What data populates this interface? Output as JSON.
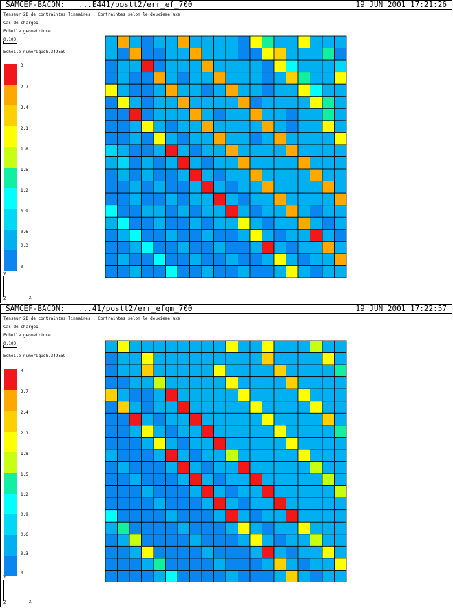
{
  "colors": [
    "#1250f0",
    "#0a86f0",
    "#00b0f0",
    "#00d8f8",
    "#00ffff",
    "#10f0a0",
    "#c8ff10",
    "#ffff00",
    "#ffd000",
    "#ffa800",
    "#f01818"
  ],
  "panels": [
    {
      "header_left": "SAMCEF-BACON:   ...E441/postt2/err_ef_700",
      "header_right": "19 JUN 2001 17:21:26",
      "title": "Tenseur 2D de contraintes lineaires : Contraintes selon le deuxieme axe",
      "load_case": "Cas de charge1",
      "geom_scale_label": "Echelle geometrique",
      "geom_scale_value": "0.100",
      "num_scale": "Echelle numerique8.349559",
      "legend_ticks": [
        "3",
        "2.7",
        "2.4",
        "2.1",
        "1.8",
        "1.5",
        "1.2",
        "0.9",
        "0.6",
        "0.3",
        "0"
      ],
      "axis_y": "Y",
      "axis_x": "X",
      "axis_z": "Z"
    },
    {
      "header_left": "SAMCEF-BACON:   ...41/postt2/err_efgm_700",
      "header_right": "19 JUN 2001 17:22:57",
      "title": "Tenseur 2D de contraintes lineaires : Contraintes selon le deuxieme axe",
      "load_case": "Cas de charge1",
      "geom_scale_label": "Echelle geometrique",
      "geom_scale_value": "0.100",
      "num_scale": "Echelle numerique8.349559",
      "legend_ticks": [
        "3",
        "2.7",
        "2.4",
        "2.1",
        "1.8",
        "1.5",
        "1.2",
        "0.9",
        "0.6",
        "0.3",
        "0"
      ],
      "axis_y": "Y",
      "axis_x": "X",
      "axis_z": "Z"
    }
  ],
  "chart_data": [
    {
      "type": "heatmap",
      "rows": 20,
      "cols": 20,
      "color_scale": [
        0,
        0.3,
        0.6,
        0.9,
        1.2,
        1.5,
        1.8,
        2.1,
        2.4,
        2.7,
        3
      ],
      "values": [
        [
          2,
          9,
          2,
          1,
          2,
          2,
          9,
          2,
          2,
          2,
          2,
          1,
          7,
          5,
          2,
          2,
          7,
          2,
          2,
          2
        ],
        [
          2,
          1,
          9,
          1,
          1,
          2,
          2,
          9,
          2,
          2,
          2,
          1,
          1,
          7,
          8,
          2,
          2,
          2,
          5,
          1
        ],
        [
          1,
          2,
          2,
          10,
          1,
          2,
          2,
          2,
          9,
          2,
          2,
          2,
          2,
          1,
          7,
          4,
          2,
          2,
          2,
          3
        ],
        [
          1,
          2,
          1,
          1,
          9,
          2,
          1,
          2,
          2,
          9,
          2,
          2,
          2,
          1,
          2,
          8,
          5,
          2,
          2,
          7
        ],
        [
          7,
          2,
          1,
          1,
          2,
          9,
          2,
          2,
          1,
          2,
          9,
          2,
          2,
          1,
          2,
          2,
          7,
          4,
          2,
          2
        ],
        [
          1,
          7,
          2,
          1,
          2,
          2,
          9,
          2,
          2,
          2,
          2,
          9,
          1,
          2,
          2,
          2,
          2,
          7,
          5,
          2
        ],
        [
          1,
          1,
          10,
          1,
          2,
          2,
          2,
          9,
          2,
          1,
          2,
          2,
          9,
          2,
          2,
          1,
          2,
          2,
          5,
          2
        ],
        [
          1,
          1,
          2,
          7,
          2,
          1,
          2,
          2,
          9,
          2,
          2,
          2,
          2,
          9,
          2,
          1,
          2,
          2,
          7,
          2
        ],
        [
          1,
          1,
          2,
          1,
          7,
          2,
          1,
          2,
          2,
          9,
          2,
          2,
          1,
          2,
          9,
          2,
          2,
          2,
          2,
          7
        ],
        [
          3,
          2,
          1,
          1,
          2,
          10,
          2,
          1,
          2,
          2,
          9,
          2,
          2,
          2,
          2,
          9,
          2,
          2,
          2,
          2
        ],
        [
          2,
          3,
          1,
          2,
          1,
          2,
          10,
          2,
          1,
          2,
          2,
          9,
          2,
          2,
          2,
          2,
          9,
          2,
          2,
          2
        ],
        [
          1,
          2,
          1,
          2,
          1,
          1,
          2,
          10,
          2,
          1,
          2,
          2,
          9,
          2,
          2,
          2,
          2,
          9,
          2,
          2
        ],
        [
          1,
          1,
          2,
          1,
          2,
          1,
          1,
          2,
          10,
          2,
          1,
          2,
          2,
          9,
          2,
          2,
          2,
          2,
          9,
          2
        ],
        [
          1,
          1,
          2,
          1,
          1,
          2,
          1,
          2,
          2,
          10,
          2,
          1,
          2,
          2,
          9,
          2,
          2,
          2,
          2,
          9
        ],
        [
          4,
          1,
          1,
          2,
          2,
          1,
          2,
          1,
          2,
          2,
          10,
          2,
          1,
          2,
          2,
          9,
          2,
          1,
          2,
          2
        ],
        [
          2,
          4,
          1,
          1,
          2,
          1,
          1,
          2,
          1,
          2,
          2,
          7,
          2,
          1,
          2,
          2,
          9,
          2,
          1,
          2
        ],
        [
          1,
          2,
          4,
          1,
          1,
          2,
          1,
          1,
          2,
          1,
          1,
          2,
          7,
          2,
          1,
          2,
          2,
          10,
          2,
          1
        ],
        [
          1,
          1,
          2,
          4,
          1,
          1,
          2,
          1,
          1,
          2,
          1,
          1,
          2,
          10,
          2,
          1,
          2,
          2,
          9,
          2
        ],
        [
          1,
          2,
          1,
          1,
          4,
          1,
          1,
          2,
          1,
          1,
          2,
          1,
          1,
          2,
          7,
          2,
          1,
          2,
          2,
          9
        ],
        [
          1,
          1,
          2,
          1,
          1,
          4,
          1,
          1,
          2,
          1,
          1,
          2,
          1,
          1,
          2,
          7,
          2,
          1,
          2,
          2
        ]
      ]
    },
    {
      "type": "heatmap",
      "rows": 20,
      "cols": 20,
      "color_scale": [
        0,
        0.3,
        0.6,
        0.9,
        1.2,
        1.5,
        1.8,
        2.1,
        2.4,
        2.7,
        3
      ],
      "values": [
        [
          2,
          7,
          2,
          2,
          2,
          2,
          2,
          2,
          2,
          2,
          7,
          2,
          2,
          7,
          2,
          2,
          2,
          6,
          2,
          2
        ],
        [
          1,
          2,
          2,
          7,
          2,
          2,
          2,
          2,
          2,
          2,
          2,
          2,
          2,
          8,
          2,
          2,
          2,
          2,
          7,
          2
        ],
        [
          1,
          2,
          2,
          8,
          2,
          2,
          2,
          2,
          2,
          7,
          2,
          2,
          2,
          2,
          8,
          2,
          2,
          2,
          2,
          5
        ],
        [
          1,
          1,
          2,
          2,
          6,
          2,
          2,
          2,
          2,
          2,
          7,
          2,
          2,
          2,
          2,
          8,
          2,
          2,
          2,
          2
        ],
        [
          8,
          2,
          1,
          1,
          2,
          10,
          2,
          2,
          2,
          2,
          2,
          7,
          2,
          2,
          2,
          2,
          7,
          2,
          2,
          2
        ],
        [
          1,
          8,
          2,
          1,
          2,
          2,
          10,
          2,
          2,
          2,
          2,
          2,
          7,
          2,
          2,
          2,
          2,
          7,
          2,
          2
        ],
        [
          1,
          1,
          10,
          2,
          1,
          2,
          2,
          10,
          2,
          2,
          2,
          2,
          2,
          7,
          2,
          2,
          2,
          2,
          8,
          2
        ],
        [
          1,
          1,
          2,
          7,
          2,
          1,
          2,
          2,
          10,
          2,
          2,
          2,
          2,
          2,
          7,
          2,
          2,
          2,
          2,
          5
        ],
        [
          1,
          1,
          1,
          2,
          7,
          2,
          1,
          2,
          2,
          10,
          2,
          2,
          2,
          2,
          2,
          7,
          2,
          2,
          2,
          2
        ],
        [
          2,
          1,
          1,
          1,
          2,
          10,
          2,
          1,
          2,
          2,
          6,
          2,
          2,
          2,
          2,
          2,
          7,
          2,
          2,
          2
        ],
        [
          1,
          2,
          1,
          1,
          1,
          2,
          10,
          2,
          1,
          2,
          2,
          10,
          2,
          2,
          2,
          2,
          2,
          6,
          2,
          2
        ],
        [
          1,
          1,
          2,
          1,
          1,
          1,
          2,
          10,
          2,
          1,
          2,
          2,
          10,
          2,
          2,
          2,
          2,
          2,
          6,
          2
        ],
        [
          1,
          1,
          1,
          2,
          1,
          1,
          1,
          2,
          10,
          2,
          1,
          2,
          2,
          10,
          2,
          2,
          2,
          2,
          2,
          6
        ],
        [
          1,
          1,
          1,
          1,
          2,
          1,
          1,
          1,
          2,
          10,
          2,
          1,
          2,
          2,
          10,
          2,
          2,
          2,
          2,
          2
        ],
        [
          4,
          1,
          1,
          1,
          1,
          2,
          1,
          1,
          1,
          2,
          10,
          2,
          1,
          2,
          2,
          10,
          2,
          2,
          2,
          2
        ],
        [
          2,
          5,
          1,
          1,
          1,
          1,
          2,
          1,
          1,
          1,
          2,
          7,
          2,
          1,
          2,
          2,
          7,
          2,
          2,
          2
        ],
        [
          1,
          2,
          6,
          1,
          1,
          1,
          1,
          2,
          1,
          1,
          1,
          2,
          7,
          2,
          1,
          2,
          2,
          6,
          2,
          2
        ],
        [
          1,
          1,
          2,
          7,
          1,
          1,
          1,
          1,
          2,
          1,
          1,
          1,
          2,
          10,
          2,
          1,
          2,
          2,
          7,
          2
        ],
        [
          1,
          1,
          1,
          2,
          5,
          1,
          1,
          1,
          1,
          2,
          1,
          1,
          1,
          2,
          8,
          2,
          1,
          2,
          2,
          7
        ],
        [
          1,
          1,
          1,
          1,
          2,
          4,
          1,
          1,
          1,
          1,
          2,
          1,
          1,
          1,
          2,
          8,
          2,
          1,
          2,
          2
        ]
      ]
    }
  ]
}
